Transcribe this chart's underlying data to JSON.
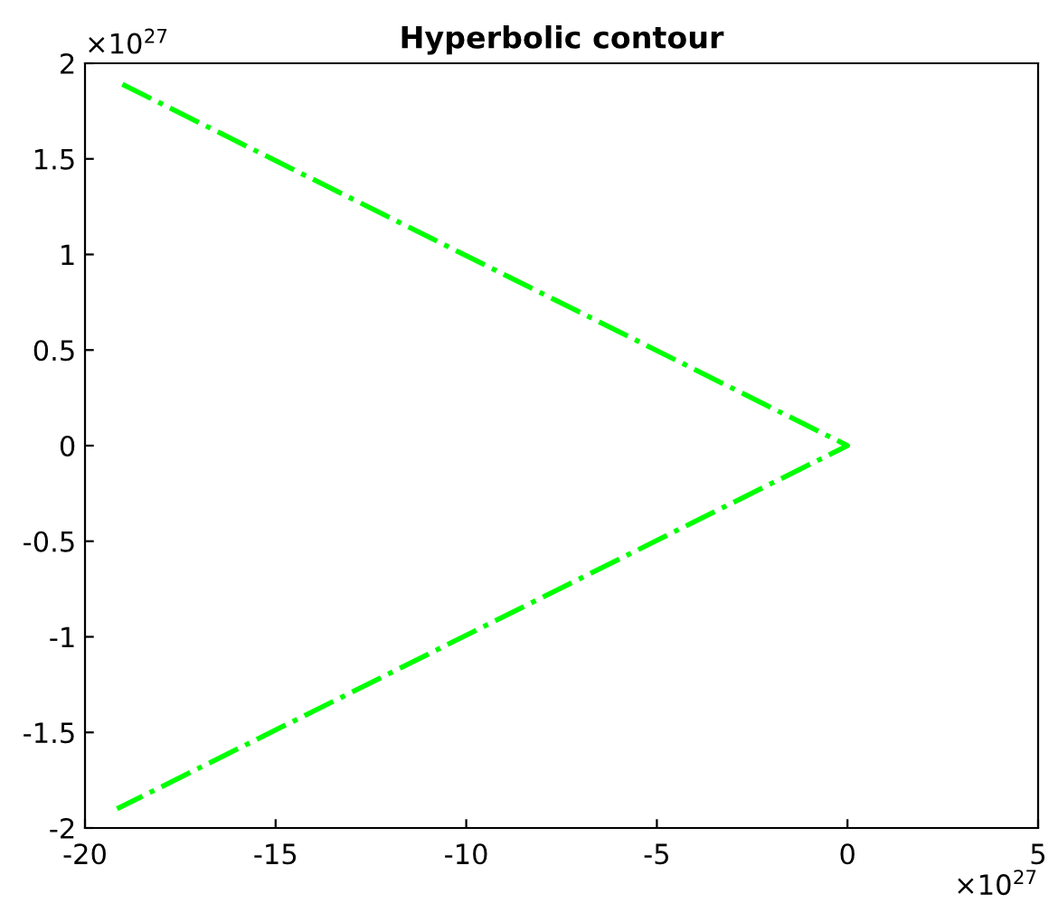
{
  "chart_data": {
    "type": "line",
    "title": "Hyperbolic contour",
    "series": [
      {
        "color": "#00ff00",
        "x": [
          -19.02,
          0,
          -19.16
        ],
        "values": [
          1.89,
          0,
          -1.9
        ]
      }
    ],
    "xlim": [
      -20,
      5
    ],
    "xticks": [
      -20,
      -15,
      -10,
      -5,
      0,
      5
    ],
    "ylim": [
      -2,
      2
    ],
    "yticks": [
      -2,
      -1.5,
      -1,
      -0.5,
      0,
      0.5,
      1,
      1.5,
      2
    ],
    "annotations": [
      "×10$^{27}$",
      "×10$^{27}$"
    ],
    "line_style": "dashdot",
    "marker": "none",
    "grid": false,
    "legend": false
  }
}
